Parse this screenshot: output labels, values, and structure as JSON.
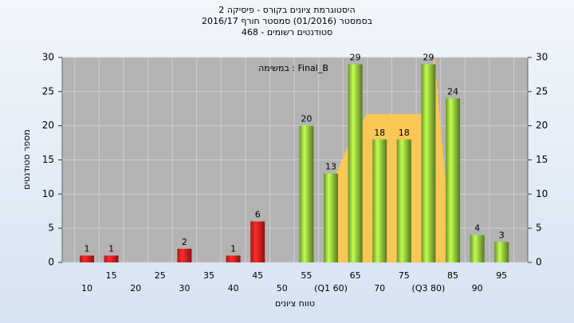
{
  "chart_data": {
    "type": "bar",
    "title": "היסטוגרמת ציונים בקורס - פיסיקה 2",
    "subtitle": "בסמסטר  (01/2016)  סמסטר חורף 2016/17",
    "subtitle2": "סטודנטים רשומים - 468",
    "annotation": "במשימה : Final_B",
    "y_label": "מספר סטודנטים",
    "x_label": "טווח ציונים",
    "categories": [
      "10",
      "15",
      "20",
      "25",
      "30",
      "35",
      "40",
      "45",
      "50",
      "55",
      "(Q1 60)",
      "65",
      "70",
      "75",
      "(Q3 80)",
      "85",
      "90",
      "95"
    ],
    "values": [
      1,
      1,
      0,
      0,
      2,
      0,
      1,
      6,
      0,
      20,
      13,
      29,
      18,
      18,
      29,
      24,
      4,
      3
    ],
    "colors": [
      "#e02020",
      "#e02020",
      "#e02020",
      "#e02020",
      "#e02020",
      "#e02020",
      "#e02020",
      "#e02020",
      "#e02020",
      "#8fc43a",
      "#8fc43a",
      "#8fc43a",
      "#8fc43a",
      "#8fc43a",
      "#8fc43a",
      "#8fc43a",
      "#8fc43a",
      "#8fc43a"
    ],
    "ylim": [
      0,
      30
    ],
    "yticks": [
      0,
      5,
      10,
      15,
      20,
      25,
      30
    ],
    "grid": true
  }
}
